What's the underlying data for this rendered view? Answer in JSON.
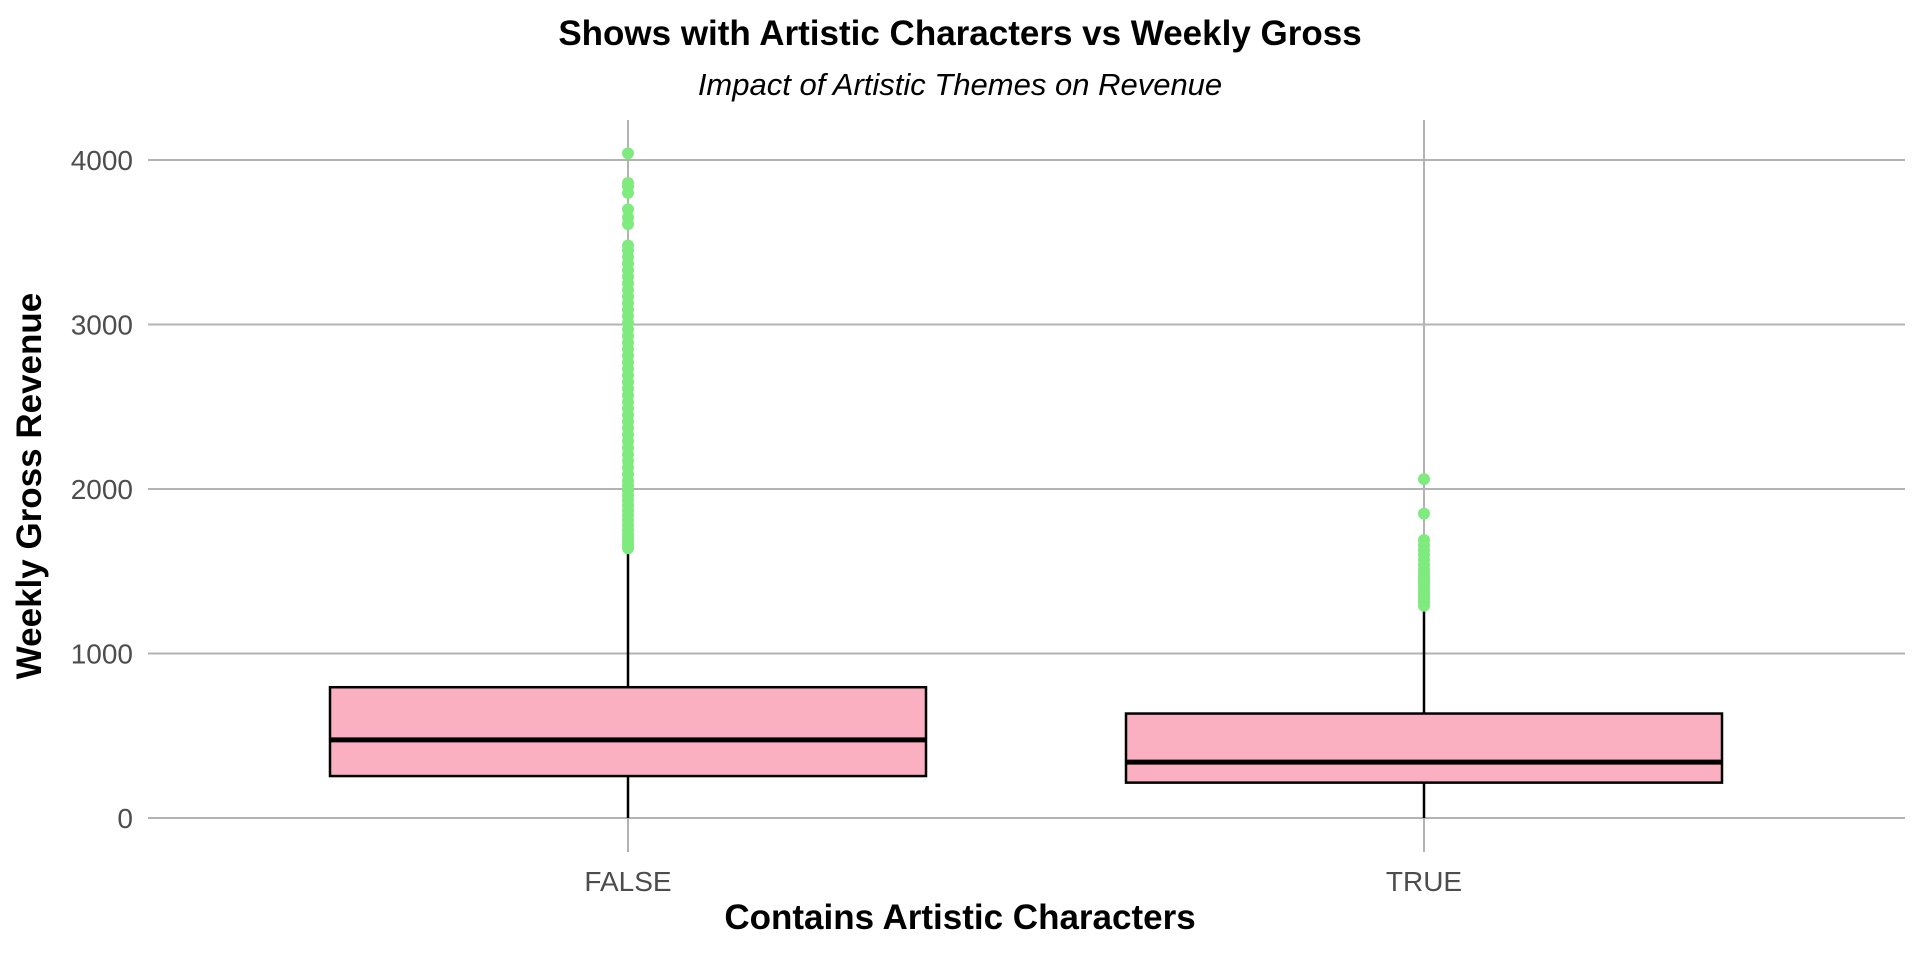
{
  "chart_data": {
    "type": "box",
    "title": "Shows with Artistic Characters vs Weekly Gross",
    "subtitle": "Impact of Artistic Themes on Revenue",
    "xlabel": "Contains Artistic Characters",
    "ylabel": "Weekly Gross Revenue",
    "ylim": [
      -50,
      4250
    ],
    "y_ticks": [
      0,
      1000,
      2000,
      3000,
      4000
    ],
    "y_tick_labels": [
      "0",
      "1000",
      "2000",
      "3000",
      "4000"
    ],
    "categories": [
      "FALSE",
      "TRUE"
    ],
    "grid": true,
    "colors": {
      "box_fill": "#FBB0C2",
      "outlier": "#7FEB7F",
      "grid": "#B3B3B3",
      "box_stroke": "#000000"
    },
    "boxes": [
      {
        "category": "FALSE",
        "min": 0,
        "q1": 255,
        "median": 475,
        "q3": 795,
        "whisker_high": 1620,
        "outliers": [
          1640,
          1660,
          1680,
          1700,
          1720,
          1750,
          1780,
          1810,
          1840,
          1870,
          1900,
          1930,
          1960,
          1990,
          2020,
          2050,
          2090,
          2130,
          2170,
          2210,
          2250,
          2290,
          2330,
          2370,
          2410,
          2450,
          2490,
          2530,
          2570,
          2610,
          2650,
          2690,
          2730,
          2770,
          2810,
          2850,
          2890,
          2930,
          2970,
          3010,
          3050,
          3090,
          3130,
          3170,
          3210,
          3250,
          3290,
          3330,
          3370,
          3410,
          3450,
          3480,
          3610,
          3650,
          3700,
          3800,
          3840,
          3860,
          4040
        ]
      },
      {
        "category": "TRUE",
        "min": 0,
        "q1": 215,
        "median": 340,
        "q3": 635,
        "whisker_high": 1270,
        "outliers": [
          1290,
          1310,
          1330,
          1350,
          1370,
          1390,
          1410,
          1430,
          1450,
          1470,
          1490,
          1510,
          1540,
          1570,
          1600,
          1630,
          1660,
          1690,
          1850,
          2060
        ]
      }
    ]
  }
}
